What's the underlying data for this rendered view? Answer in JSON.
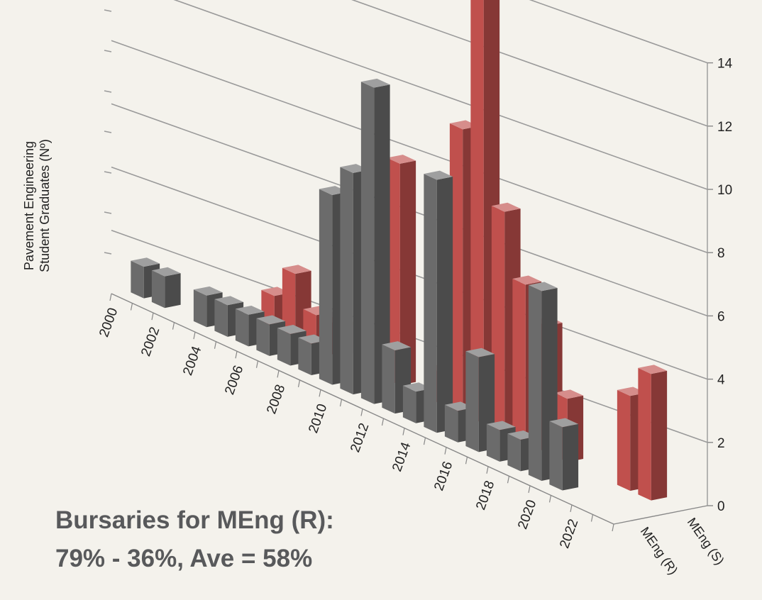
{
  "chart_data": {
    "type": "bar",
    "variant": "3d-column",
    "ylabel_lines": [
      "Pavement  Engineering",
      "Student Graduates (Nº)"
    ],
    "ylim": [
      0,
      14
    ],
    "yticks": [
      "0",
      "2",
      "4",
      "6",
      "8",
      "10",
      "12",
      "14"
    ],
    "xtick_labels": [
      "2000",
      "2002",
      "2004",
      "2006",
      "2008",
      "2010",
      "2012",
      "2014",
      "2016",
      "2018",
      "2020",
      "2022"
    ],
    "categories": [
      "2000",
      "2001",
      "2002",
      "2003",
      "2004",
      "2005",
      "2006",
      "2007",
      "2008",
      "2009",
      "2010",
      "2011",
      "2012",
      "2013",
      "2014",
      "2015",
      "2016",
      "2017",
      "2018",
      "2019",
      "2020",
      "2021",
      "2022",
      "2023"
    ],
    "series": [
      {
        "name": "MEng (R)",
        "color": "#6b6b6b",
        "values": [
          1,
          1,
          0,
          1,
          1,
          1,
          1,
          1,
          1,
          6,
          7,
          10,
          2,
          1,
          8,
          1,
          3,
          1,
          1,
          6,
          2,
          0,
          0,
          0
        ]
      },
      {
        "name": "MEng (S)",
        "color": "#c0504d",
        "values": [
          0,
          0,
          0,
          0,
          1,
          2,
          1,
          1,
          0,
          0,
          7,
          0,
          1,
          9,
          14,
          7,
          5,
          4,
          2,
          0,
          0,
          3,
          4,
          0
        ]
      }
    ],
    "grid": true
  },
  "caption": {
    "line1": "Bursaries for MEng (R):",
    "line2": "79% - 36%, Ave = 58%"
  }
}
